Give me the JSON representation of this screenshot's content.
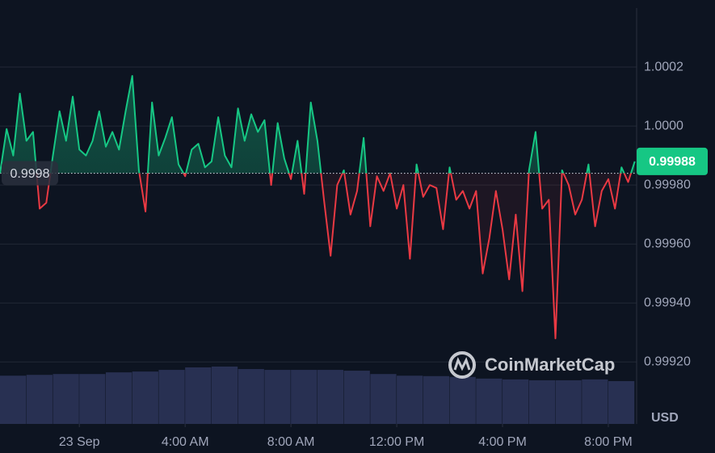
{
  "chart_data": {
    "type": "line",
    "x": [
      -3,
      -2.75,
      -2.5,
      -2.25,
      -2,
      -1.75,
      -1.5,
      -1.25,
      -1,
      -0.75,
      -0.5,
      -0.25,
      0,
      0.25,
      0.5,
      0.75,
      1,
      1.25,
      1.5,
      1.75,
      2,
      2.25,
      2.5,
      2.75,
      3,
      3.25,
      3.5,
      3.75,
      4,
      4.25,
      4.5,
      4.75,
      5,
      5.25,
      5.5,
      5.75,
      6,
      6.25,
      6.5,
      6.75,
      7,
      7.25,
      7.5,
      7.75,
      8,
      8.25,
      8.5,
      8.75,
      9,
      9.25,
      9.5,
      9.75,
      10,
      10.25,
      10.5,
      10.75,
      11,
      11.25,
      11.5,
      11.75,
      12,
      12.25,
      12.5,
      12.75,
      13,
      13.25,
      13.5,
      13.75,
      14,
      14.25,
      14.5,
      14.75,
      15,
      15.25,
      15.5,
      15.75,
      16,
      16.25,
      16.5,
      16.75,
      17,
      17.25,
      17.5,
      17.75,
      18,
      18.25,
      18.5,
      18.75,
      19,
      19.25,
      19.5,
      19.75,
      20,
      20.25,
      20.5,
      20.75,
      21
    ],
    "values": [
      0.99984,
      0.99999,
      0.9999,
      1.00011,
      0.99995,
      0.99998,
      0.99972,
      0.99974,
      0.9999,
      1.00005,
      0.99995,
      1.0001,
      0.99992,
      0.9999,
      0.99995,
      1.00005,
      0.99993,
      0.99998,
      0.99992,
      1.00005,
      1.00017,
      0.99985,
      0.99971,
      1.00008,
      0.9999,
      0.99996,
      1.00003,
      0.99987,
      0.99983,
      0.99992,
      0.99994,
      0.99986,
      0.99988,
      1.00003,
      0.9999,
      0.99986,
      1.00006,
      0.99995,
      1.00004,
      0.99998,
      1.00002,
      0.9998,
      1.00001,
      0.99989,
      0.99982,
      0.99995,
      0.99977,
      1.00008,
      0.99995,
      0.99975,
      0.99956,
      0.9998,
      0.99985,
      0.9997,
      0.99978,
      0.99996,
      0.99966,
      0.99983,
      0.99978,
      0.99984,
      0.99972,
      0.9998,
      0.99955,
      0.99987,
      0.99976,
      0.9998,
      0.99979,
      0.99965,
      0.99986,
      0.99975,
      0.99978,
      0.99972,
      0.99978,
      0.9995,
      0.99962,
      0.99978,
      0.99965,
      0.99948,
      0.9997,
      0.99944,
      0.99985,
      0.99998,
      0.99972,
      0.99975,
      0.99928,
      0.99985,
      0.9998,
      0.9997,
      0.99975,
      0.99987,
      0.99966,
      0.99978,
      0.99982,
      0.99972,
      0.99986,
      0.99981,
      0.99988
    ],
    "colors": {
      "up": "#16c784",
      "down": "#ea3943"
    },
    "baseline": {
      "value": 0.99984,
      "label": "0.9998"
    },
    "xlim": [
      -3,
      21.07
    ],
    "xticks": [
      {
        "value": 0,
        "label": "23 Sep"
      },
      {
        "value": 4,
        "label": "4:00 AM"
      },
      {
        "value": 8,
        "label": "8:00 AM"
      },
      {
        "value": 12,
        "label": "12:00 PM"
      },
      {
        "value": 16,
        "label": "4:00 PM"
      },
      {
        "value": 20,
        "label": "8:00 PM"
      }
    ],
    "ylim": [
      0.99899,
      1.0004
    ],
    "yticks": [
      1.0002,
      {
        "value": 1.0,
        "label": "1.0000"
      },
      {
        "value": 0.9998,
        "label": "0.99980"
      },
      {
        "value": 0.9996,
        "label": "0.99960"
      },
      {
        "value": 0.9994,
        "label": "0.99940"
      },
      {
        "value": 0.9992,
        "label": "0.99920"
      }
    ],
    "grid": true,
    "y2lim": [
      0,
      100
    ],
    "volume": {
      "axis": "y2",
      "color": "#283052",
      "x": [
        -3,
        -2,
        -1,
        0,
        1,
        2,
        3,
        4,
        5,
        6,
        7,
        8,
        9,
        10,
        11,
        12,
        13,
        14,
        15,
        16,
        17,
        18,
        19,
        20
      ],
      "values": [
        11.6,
        11.8,
        12.0,
        12.0,
        12.4,
        12.6,
        13.0,
        13.6,
        13.8,
        13.2,
        13.0,
        13.0,
        13.0,
        12.8,
        12.0,
        11.6,
        11.5,
        11.3,
        10.9,
        10.7,
        10.5,
        10.5,
        10.7,
        10.3
      ]
    },
    "currency": "USD",
    "watermark": "CoinMarketCap"
  }
}
